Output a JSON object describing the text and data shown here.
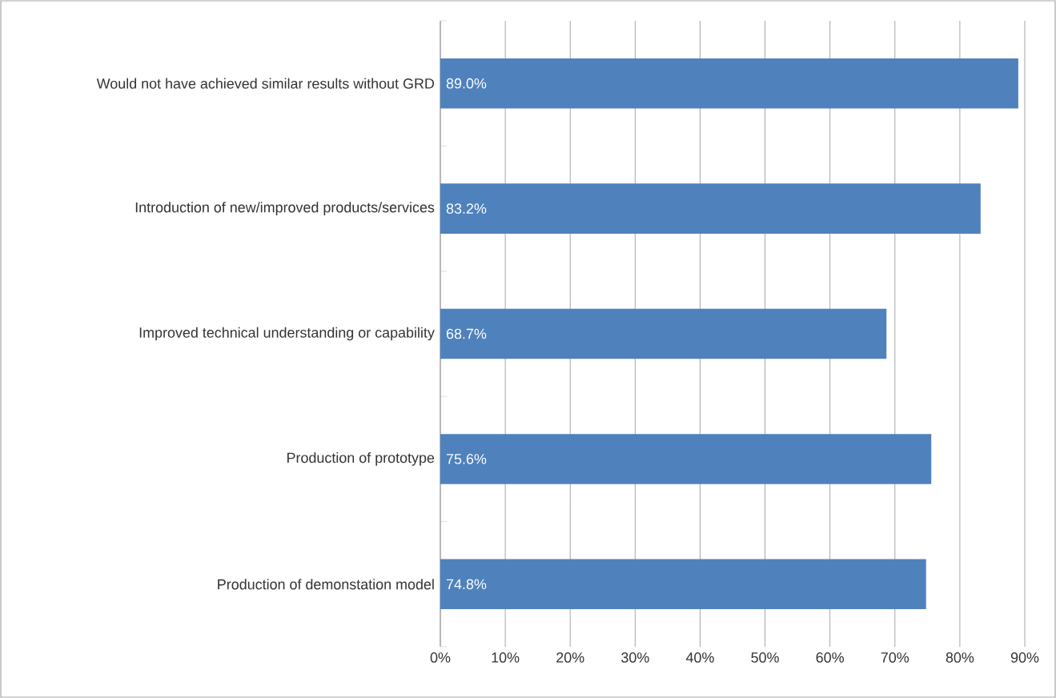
{
  "chart_data": {
    "type": "bar",
    "orientation": "horizontal",
    "categories": [
      "Would not have achieved similar results without GRD",
      "Introduction of new/improved products/services",
      "Improved technical understanding or capability",
      "Production of prototype",
      "Production of demonstation model"
    ],
    "values": [
      89.0,
      83.2,
      68.7,
      75.6,
      74.8
    ],
    "value_labels": [
      "89.0%",
      "83.2%",
      "68.7%",
      "75.6%",
      "74.8%"
    ],
    "color": "#4f81bd",
    "xlim": [
      0,
      90
    ],
    "xticks": [
      {
        "value": 0,
        "label": "0%"
      },
      {
        "value": 10,
        "label": "10%"
      },
      {
        "value": 20,
        "label": "20%"
      },
      {
        "value": 30,
        "label": "30%"
      },
      {
        "value": 40,
        "label": "40%"
      },
      {
        "value": 50,
        "label": "50%"
      },
      {
        "value": 60,
        "label": "60%"
      },
      {
        "value": 70,
        "label": "70%"
      },
      {
        "value": 80,
        "label": "80%"
      },
      {
        "value": 90,
        "label": "90%"
      }
    ],
    "grid": "x"
  }
}
